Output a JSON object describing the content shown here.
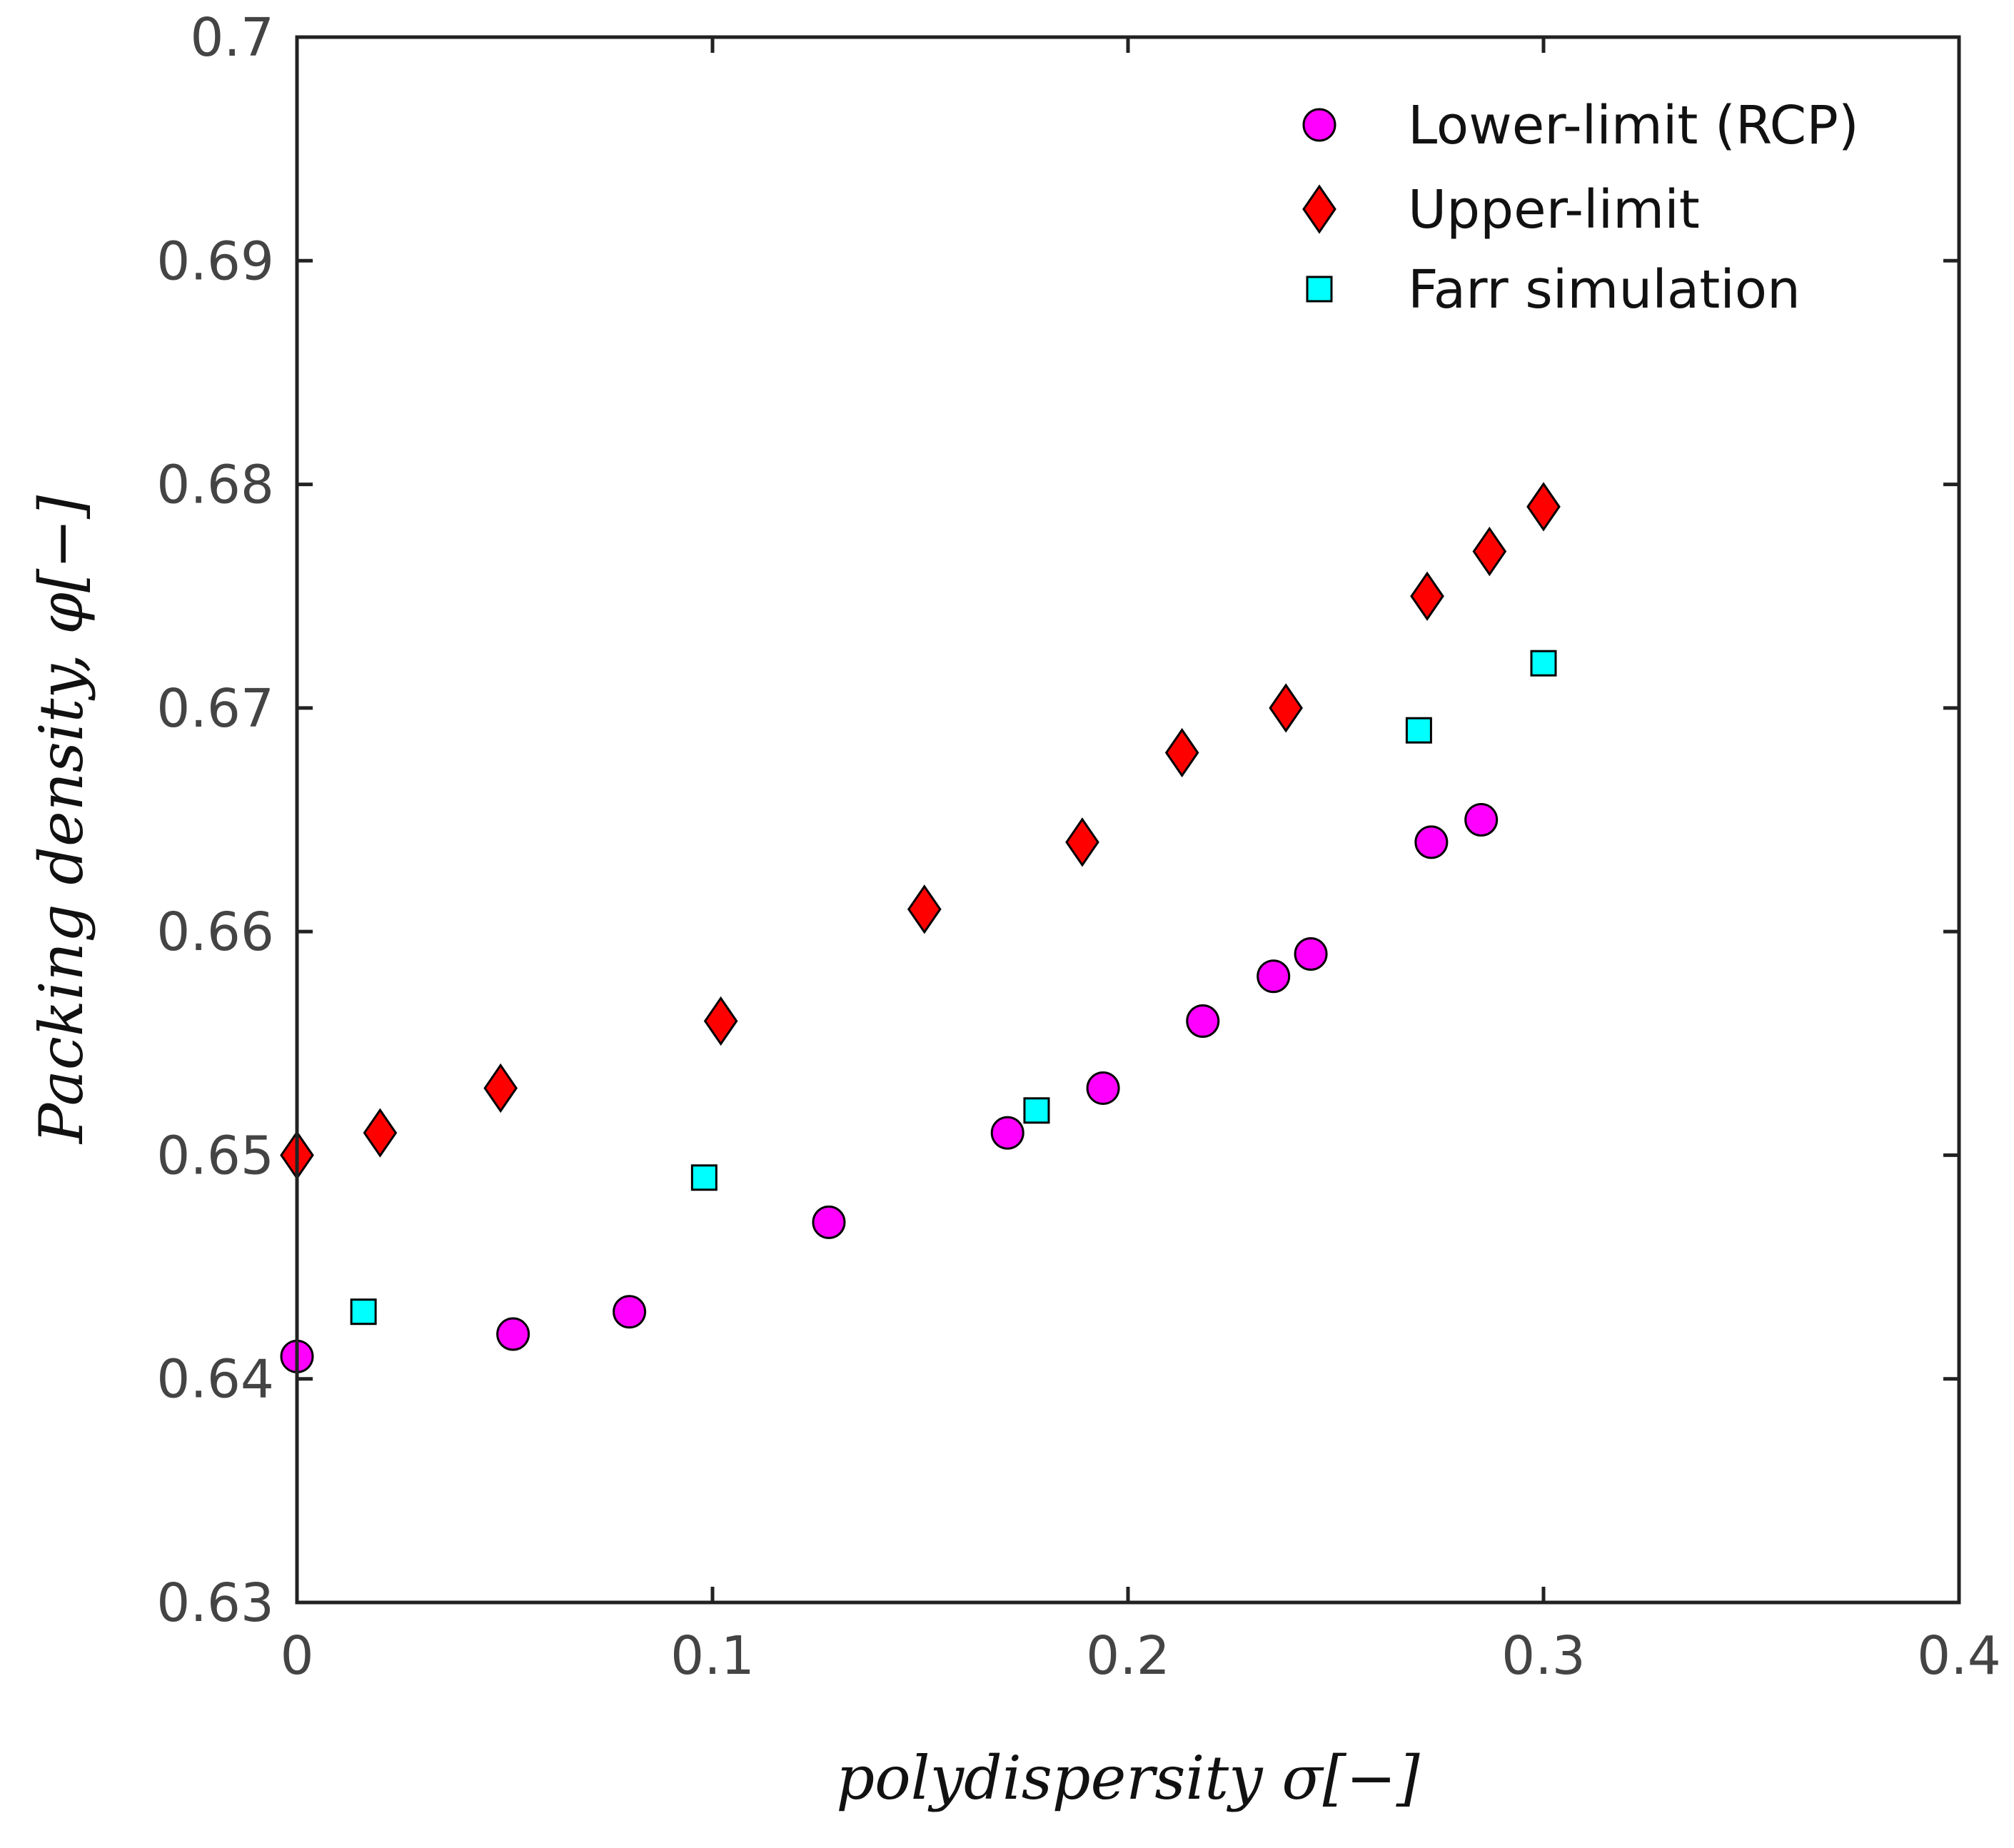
{
  "chart_data": {
    "type": "scatter",
    "title": "",
    "xlabel": "polydispersity σ[−]",
    "ylabel": "Packing density, φ[−]",
    "xlim": [
      0,
      0.4
    ],
    "ylim": [
      0.63,
      0.7
    ],
    "xticks": [
      0,
      0.1,
      0.2,
      0.3,
      0.4
    ],
    "xtick_labels": [
      "0",
      "0.1",
      "0.2",
      "0.3",
      "0.4"
    ],
    "yticks": [
      0.63,
      0.64,
      0.65,
      0.66,
      0.67,
      0.68,
      0.69,
      0.7
    ],
    "ytick_labels": [
      "0.63",
      "0.64",
      "0.65",
      "0.66",
      "0.67",
      "0.68",
      "0.69",
      "0.7"
    ],
    "grid": false,
    "legend_position": "top-right",
    "series": [
      {
        "name": "Lower-limit (RCP)",
        "marker": "circle",
        "color": "#ff00ff",
        "x": [
          0.0,
          0.052,
          0.08,
          0.128,
          0.171,
          0.194,
          0.218,
          0.235,
          0.244,
          0.273,
          0.285
        ],
        "y": [
          0.641,
          0.642,
          0.643,
          0.647,
          0.651,
          0.653,
          0.656,
          0.658,
          0.659,
          0.664,
          0.665
        ]
      },
      {
        "name": "Upper-limit",
        "marker": "diamond",
        "color": "#ff0000",
        "x": [
          0.0,
          0.02,
          0.049,
          0.102,
          0.151,
          0.189,
          0.213,
          0.238,
          0.272,
          0.287,
          0.3
        ],
        "y": [
          0.65,
          0.651,
          0.653,
          0.656,
          0.661,
          0.664,
          0.668,
          0.67,
          0.675,
          0.677,
          0.679
        ]
      },
      {
        "name": "Farr simulation",
        "marker": "square",
        "color": "#00ffff",
        "x": [
          0.016,
          0.098,
          0.178,
          0.27,
          0.3
        ],
        "y": [
          0.643,
          0.649,
          0.652,
          0.669,
          0.672
        ]
      }
    ]
  }
}
